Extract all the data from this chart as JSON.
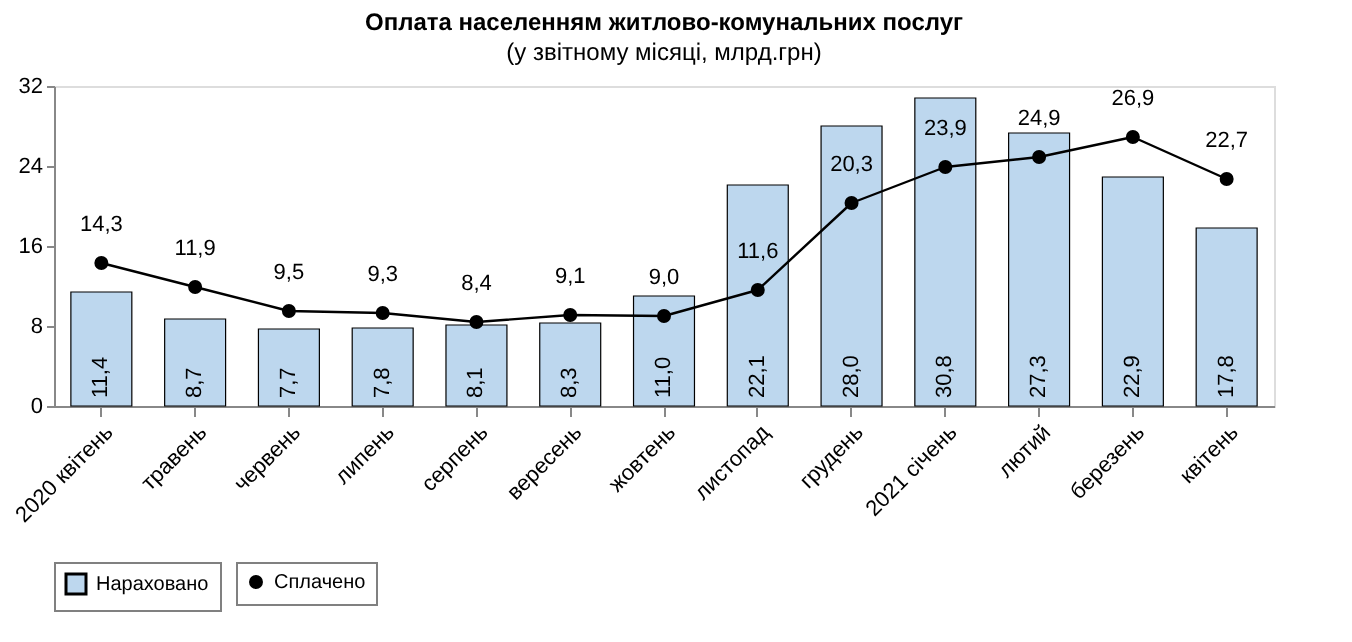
{
  "chart_data": {
    "type": "bar",
    "title": "Оплата населенням житлово-комунальних послуг",
    "subtitle": "(у звітному місяці, млрд.грн)",
    "categories": [
      "2020 квітень",
      "травень",
      "червень",
      "липень",
      "серпень",
      "вересень",
      "жовтень",
      "листопад",
      "грудень",
      "2021 січень",
      "лютий",
      "березень",
      "квітень"
    ],
    "series": [
      {
        "name": "Нараховано",
        "color": "#bdd7ee",
        "values": [
          11.4,
          8.7,
          7.7,
          7.8,
          8.1,
          8.3,
          11.0,
          22.1,
          28.0,
          30.8,
          27.3,
          22.9,
          17.8
        ],
        "value_labels": [
          "11,4",
          "8,7",
          "7,7",
          "7,8",
          "8,1",
          "8,3",
          "11,0",
          "22,1",
          "28,0",
          "30,8",
          "27,3",
          "22,9",
          "17,8"
        ]
      },
      {
        "name": "Сплачено",
        "type": "line",
        "color": "#000000",
        "marker": "circle",
        "values": [
          14.3,
          11.9,
          9.5,
          9.3,
          8.4,
          9.1,
          9.0,
          11.6,
          20.3,
          23.9,
          24.9,
          26.9,
          22.7
        ],
        "value_labels": [
          "14,3",
          "11,9",
          "9,5",
          "9,3",
          "8,4",
          "9,1",
          "9,0",
          "11,6",
          "20,3",
          "23,9",
          "24,9",
          "26,9",
          "22,7"
        ]
      }
    ],
    "ylim": [
      0,
      32
    ],
    "yticks": [
      0,
      8,
      16,
      24,
      32
    ],
    "grid": false,
    "legend": "bottom"
  }
}
